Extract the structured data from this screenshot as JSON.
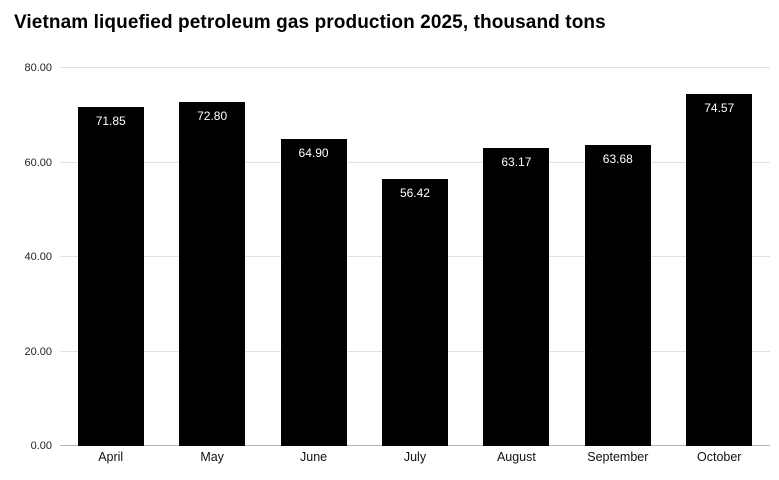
{
  "chart_data": {
    "type": "bar",
    "title": "Vietnam liquefied petroleum gas production 2025, thousand tons",
    "categories": [
      "April",
      "May",
      "June",
      "July",
      "August",
      "September",
      "October"
    ],
    "values": [
      71.85,
      72.8,
      64.9,
      56.42,
      63.17,
      63.68,
      74.57
    ],
    "value_labels": [
      "71.85",
      "72.80",
      "64.90",
      "56.42",
      "63.17",
      "63.68",
      "74.57"
    ],
    "xlabel": "",
    "ylabel": "",
    "ylim": [
      0,
      80
    ],
    "yticks": [
      0,
      20,
      40,
      60,
      80
    ],
    "ytick_labels": [
      "0.00",
      "20.00",
      "40.00",
      "60.00",
      "80.00"
    ],
    "grid": true,
    "legend_position": "none",
    "bar_color": "#000000",
    "bar_label_color": "#ffffff"
  }
}
